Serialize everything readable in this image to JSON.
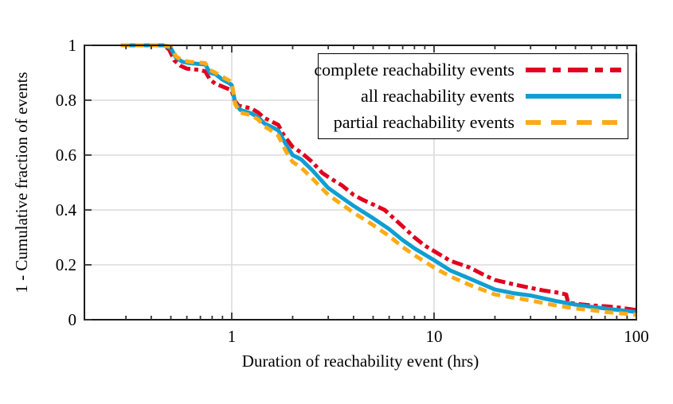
{
  "figure": {
    "background": "#ffffff",
    "axis_color": "#1c1c1c",
    "grid_color": "#dcdcdc",
    "tick_color": "#333333"
  },
  "chart_data": {
    "type": "line",
    "title": "",
    "xlabel": "Duration of reachability event (hrs)",
    "ylabel": "1 - Cumulative fraction of events",
    "x_scale": "log",
    "xlim": [
      0.187,
      100
    ],
    "ylim": [
      0,
      1
    ],
    "x_ticks": {
      "major": [
        1,
        10,
        100
      ],
      "major_labels": [
        "1",
        "10",
        "100"
      ],
      "minor": [
        0.3,
        0.4,
        0.5,
        0.6,
        0.7,
        0.8,
        0.9,
        2,
        3,
        4,
        5,
        6,
        7,
        8,
        9,
        20,
        30,
        40,
        50,
        60,
        70,
        80,
        90
      ]
    },
    "y_ticks": {
      "major": [
        0,
        0.2,
        0.4,
        0.6,
        0.8,
        1
      ],
      "major_labels": [
        "0",
        "0.2",
        "0.4",
        "0.6",
        "0.8",
        "1"
      ]
    },
    "grid": {
      "x_lines": [
        1,
        10
      ],
      "y_lines": [
        0.2,
        0.4,
        0.6,
        0.8
      ],
      "on": true
    },
    "legend": {
      "position": "top-right",
      "border": true
    },
    "series": [
      {
        "name": "complete reachability events",
        "color": "#e2001e",
        "dash": "dashdot",
        "points": [
          [
            0.283,
            1.0
          ],
          [
            0.46,
            1.0
          ],
          [
            0.49,
            0.985
          ],
          [
            0.52,
            0.945
          ],
          [
            0.56,
            0.925
          ],
          [
            0.6,
            0.915
          ],
          [
            0.7,
            0.91
          ],
          [
            0.74,
            0.905
          ],
          [
            0.78,
            0.875
          ],
          [
            0.83,
            0.86
          ],
          [
            0.9,
            0.85
          ],
          [
            0.97,
            0.84
          ],
          [
            1.0,
            0.835
          ],
          [
            1.03,
            0.8
          ],
          [
            1.08,
            0.78
          ],
          [
            1.25,
            0.77
          ],
          [
            1.35,
            0.755
          ],
          [
            1.45,
            0.735
          ],
          [
            1.55,
            0.725
          ],
          [
            1.7,
            0.71
          ],
          [
            1.8,
            0.675
          ],
          [
            2.0,
            0.63
          ],
          [
            2.2,
            0.61
          ],
          [
            2.5,
            0.575
          ],
          [
            2.8,
            0.535
          ],
          [
            3.0,
            0.52
          ],
          [
            3.5,
            0.49
          ],
          [
            4.0,
            0.455
          ],
          [
            4.5,
            0.435
          ],
          [
            5.0,
            0.42
          ],
          [
            5.7,
            0.4
          ],
          [
            6.0,
            0.385
          ],
          [
            7.0,
            0.34
          ],
          [
            8.0,
            0.3
          ],
          [
            9.0,
            0.27
          ],
          [
            10,
            0.25
          ],
          [
            12,
            0.215
          ],
          [
            15,
            0.19
          ],
          [
            18,
            0.16
          ],
          [
            20,
            0.145
          ],
          [
            25,
            0.128
          ],
          [
            30,
            0.116
          ],
          [
            35,
            0.106
          ],
          [
            40,
            0.1
          ],
          [
            45,
            0.092
          ],
          [
            46,
            0.062
          ],
          [
            50,
            0.058
          ],
          [
            60,
            0.052
          ],
          [
            70,
            0.049
          ],
          [
            80,
            0.045
          ],
          [
            90,
            0.04
          ],
          [
            100,
            0.035
          ]
        ]
      },
      {
        "name": "all reachability events",
        "color": "#0f9ed3",
        "dash": "solid",
        "points": [
          [
            0.283,
            1.0
          ],
          [
            0.46,
            1.0
          ],
          [
            0.5,
            0.99
          ],
          [
            0.53,
            0.955
          ],
          [
            0.57,
            0.94
          ],
          [
            0.62,
            0.935
          ],
          [
            0.74,
            0.93
          ],
          [
            0.78,
            0.9
          ],
          [
            0.83,
            0.895
          ],
          [
            0.9,
            0.875
          ],
          [
            0.97,
            0.862
          ],
          [
            1.0,
            0.855
          ],
          [
            1.04,
            0.79
          ],
          [
            1.1,
            0.765
          ],
          [
            1.25,
            0.752
          ],
          [
            1.35,
            0.738
          ],
          [
            1.45,
            0.715
          ],
          [
            1.6,
            0.7
          ],
          [
            1.7,
            0.69
          ],
          [
            1.85,
            0.64
          ],
          [
            2.0,
            0.6
          ],
          [
            2.2,
            0.585
          ],
          [
            2.5,
            0.545
          ],
          [
            3.0,
            0.48
          ],
          [
            3.5,
            0.445
          ],
          [
            4.0,
            0.415
          ],
          [
            5.0,
            0.37
          ],
          [
            6.0,
            0.33
          ],
          [
            7.0,
            0.29
          ],
          [
            8.0,
            0.26
          ],
          [
            10,
            0.217
          ],
          [
            12,
            0.18
          ],
          [
            15,
            0.15
          ],
          [
            20,
            0.11
          ],
          [
            25,
            0.096
          ],
          [
            30,
            0.088
          ],
          [
            40,
            0.068
          ],
          [
            50,
            0.055
          ],
          [
            60,
            0.047
          ],
          [
            70,
            0.041
          ],
          [
            85,
            0.034
          ],
          [
            100,
            0.028
          ]
        ]
      },
      {
        "name": "partial reachability events",
        "color": "#fcab17",
        "dash": "dashed",
        "points": [
          [
            0.283,
            1.0
          ],
          [
            0.46,
            1.0
          ],
          [
            0.5,
            0.995
          ],
          [
            0.53,
            0.96
          ],
          [
            0.57,
            0.945
          ],
          [
            0.62,
            0.94
          ],
          [
            0.74,
            0.935
          ],
          [
            0.78,
            0.91
          ],
          [
            0.83,
            0.9
          ],
          [
            0.9,
            0.885
          ],
          [
            0.97,
            0.872
          ],
          [
            1.0,
            0.865
          ],
          [
            1.04,
            0.785
          ],
          [
            1.1,
            0.755
          ],
          [
            1.25,
            0.745
          ],
          [
            1.35,
            0.73
          ],
          [
            1.45,
            0.705
          ],
          [
            1.6,
            0.685
          ],
          [
            1.7,
            0.67
          ],
          [
            1.85,
            0.615
          ],
          [
            2.0,
            0.575
          ],
          [
            2.2,
            0.555
          ],
          [
            2.5,
            0.515
          ],
          [
            3.0,
            0.455
          ],
          [
            3.5,
            0.42
          ],
          [
            4.0,
            0.39
          ],
          [
            5.0,
            0.345
          ],
          [
            6.0,
            0.305
          ],
          [
            7.0,
            0.265
          ],
          [
            8.0,
            0.235
          ],
          [
            10,
            0.19
          ],
          [
            12,
            0.158
          ],
          [
            15,
            0.127
          ],
          [
            20,
            0.092
          ],
          [
            25,
            0.08
          ],
          [
            30,
            0.07
          ],
          [
            40,
            0.052
          ],
          [
            50,
            0.041
          ],
          [
            60,
            0.035
          ],
          [
            70,
            0.028
          ],
          [
            85,
            0.023
          ],
          [
            100,
            0.018
          ]
        ]
      }
    ]
  }
}
